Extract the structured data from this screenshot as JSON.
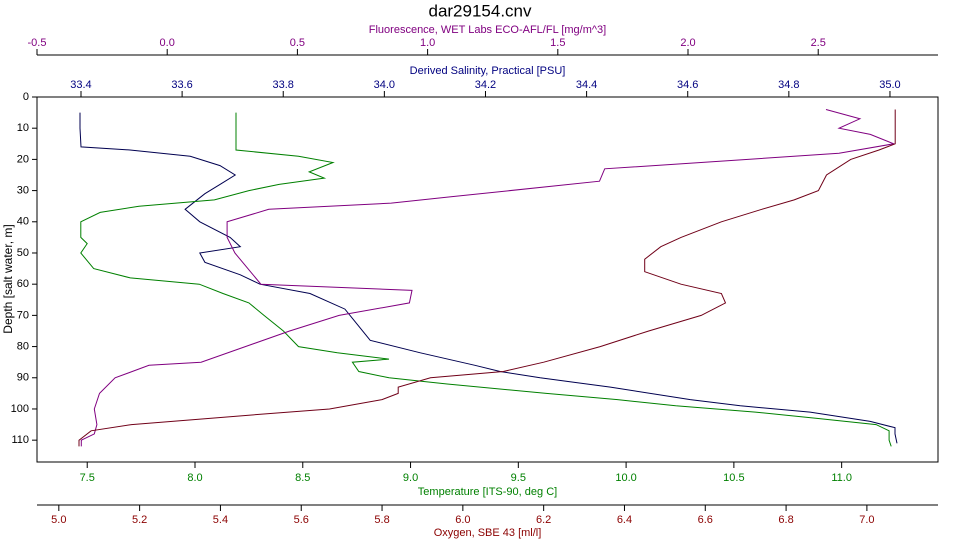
{
  "chart_data": {
    "type": "line",
    "title": "dar29154.cnv",
    "ylabel": "Depth [salt water, m]",
    "ylim": [
      0,
      117
    ],
    "yticks": [
      0,
      10,
      20,
      30,
      40,
      50,
      60,
      70,
      80,
      90,
      100,
      110
    ],
    "axes": [
      {
        "label": "Fluorescence, WET Labs ECO-AFL/FL [mg/m^3]",
        "color": "#800080",
        "xlim": [
          -0.5,
          2.96
        ],
        "xticks": [
          -0.5,
          {
            "value": 0,
            "label": "0.0"
          },
          0.5,
          {
            "value": 1,
            "label": "1.0"
          },
          1.5,
          {
            "value": 2,
            "label": "2.0"
          },
          2.5
        ]
      },
      {
        "label": "Derived Salinity, Practical [PSU]",
        "color": "#000080",
        "xlim": [
          33.313,
          35.095
        ],
        "xticks": [
          33.4,
          33.6,
          33.8,
          {
            "value": 34,
            "label": "34.0"
          },
          34.2,
          34.4,
          34.6,
          34.8,
          {
            "value": 35,
            "label": "35.0"
          }
        ]
      },
      {
        "label": "Temperature [ITS-90, deg C]",
        "color": "#008000",
        "xlim": [
          7.267,
          11.447
        ],
        "xticks": [
          7.5,
          {
            "value": 8,
            "label": "8.0"
          },
          8.5,
          {
            "value": 9,
            "label": "9.0"
          },
          9.5,
          {
            "value": 10,
            "label": "10.0"
          },
          10.5,
          {
            "value": 11,
            "label": "11.0"
          }
        ]
      },
      {
        "label": "Oxygen, SBE 43 [ml/l]",
        "color": "#8b0000",
        "xlim": [
          4.946,
          7.176
        ],
        "xticks": [
          {
            "value": 5,
            "label": "5.0"
          },
          5.2,
          5.4,
          5.6,
          5.8,
          {
            "value": 6,
            "label": "6.0"
          },
          6.2,
          6.4,
          6.6,
          6.8,
          {
            "value": 7,
            "label": "7.0"
          }
        ]
      }
    ],
    "series": [
      {
        "axis": 1,
        "color": "#000050",
        "depth": [
          5,
          10,
          16,
          17,
          19,
          22,
          25,
          28,
          31,
          36,
          40,
          45,
          48,
          50,
          53,
          57,
          60,
          63,
          68,
          72,
          78,
          82,
          86,
          88,
          90,
          93,
          97,
          99,
          101,
          104,
          106,
          108,
          111
        ],
        "values": [
          33.398,
          33.398,
          33.4,
          33.497,
          33.616,
          33.675,
          33.705,
          33.675,
          33.645,
          33.606,
          33.635,
          33.695,
          33.715,
          33.635,
          33.645,
          33.715,
          33.754,
          33.853,
          33.922,
          33.942,
          33.972,
          34.071,
          34.179,
          34.229,
          34.308,
          34.447,
          34.605,
          34.704,
          34.842,
          34.961,
          35.01,
          35.01,
          35.014
        ]
      },
      {
        "axis": 2,
        "color": "#008000",
        "depth": [
          5,
          10,
          17,
          19,
          21,
          24,
          26,
          28,
          30,
          33,
          35,
          37,
          40,
          45,
          47,
          50,
          55,
          58,
          60,
          63,
          66,
          70,
          75,
          80,
          82,
          84,
          85,
          88,
          90,
          92,
          95,
          97,
          99,
          101,
          103,
          105,
          107,
          110,
          112
        ],
        "values": [
          8.19,
          8.19,
          8.19,
          8.48,
          8.64,
          8.53,
          8.6,
          8.39,
          8.25,
          8.09,
          7.74,
          7.56,
          7.47,
          7.47,
          7.5,
          7.47,
          7.53,
          7.7,
          8.02,
          8.13,
          8.25,
          8.32,
          8.41,
          8.48,
          8.66,
          8.9,
          8.73,
          8.76,
          8.9,
          9.17,
          9.63,
          9.96,
          10.23,
          10.6,
          10.88,
          11.16,
          11.22,
          11.22,
          11.23
        ]
      },
      {
        "axis": 0,
        "color": "#800080",
        "depth": [
          4,
          7,
          10,
          12,
          15,
          18,
          21,
          23,
          27,
          32,
          34,
          36,
          40,
          45,
          50,
          60,
          62,
          66,
          70,
          75,
          80,
          85,
          86,
          90,
          95,
          100,
          105,
          108,
          110,
          112
        ],
        "values": [
          2.53,
          2.66,
          2.58,
          2.7,
          2.79,
          2.58,
          2.05,
          1.68,
          1.66,
          1.09,
          0.86,
          0.39,
          0.23,
          0.23,
          0.26,
          0.36,
          0.94,
          0.93,
          0.66,
          0.47,
          0.3,
          0.13,
          -0.07,
          -0.2,
          -0.26,
          -0.28,
          -0.27,
          -0.28,
          -0.33,
          -0.33
        ]
      },
      {
        "axis": 3,
        "color": "#700018",
        "depth": [
          4,
          10,
          15,
          17,
          20,
          25,
          30,
          33,
          36,
          40,
          45,
          48,
          52,
          56,
          60,
          63,
          66,
          70,
          75,
          80,
          85,
          88,
          90,
          93,
          95,
          97,
          100,
          102,
          105,
          107,
          110,
          112
        ],
        "values": [
          7.07,
          7.07,
          7.07,
          7.03,
          6.96,
          6.9,
          6.88,
          6.82,
          6.74,
          6.64,
          6.54,
          6.49,
          6.45,
          6.45,
          6.54,
          6.64,
          6.65,
          6.59,
          6.46,
          6.34,
          6.2,
          6.1,
          5.92,
          5.84,
          5.84,
          5.8,
          5.67,
          5.47,
          5.18,
          5.08,
          5.05,
          5.05
        ]
      }
    ]
  }
}
